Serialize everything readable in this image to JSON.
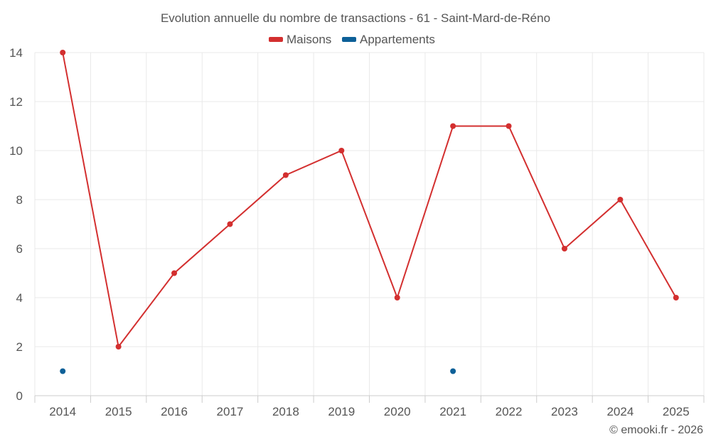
{
  "chart_data": {
    "type": "line",
    "title": "Evolution annuelle du nombre de transactions - 61 - Saint-Mard-de-Réno",
    "categories": [
      "2014",
      "2015",
      "2016",
      "2017",
      "2018",
      "2019",
      "2020",
      "2021",
      "2022",
      "2023",
      "2024",
      "2025"
    ],
    "series": [
      {
        "name": "Maisons",
        "color": "#d32f2f",
        "values": [
          14,
          2,
          5,
          7,
          9,
          10,
          4,
          11,
          11,
          6,
          8,
          4
        ]
      },
      {
        "name": "Appartements",
        "color": "#0d6098",
        "values": [
          1,
          null,
          null,
          null,
          null,
          null,
          null,
          1,
          null,
          null,
          null,
          null
        ]
      }
    ],
    "ylim": [
      0,
      14
    ],
    "yticks": [
      "0",
      "2",
      "4",
      "6",
      "8",
      "10",
      "12",
      "14"
    ],
    "xlabel": "",
    "ylabel": "",
    "grid": true,
    "legend_position": "top-center"
  },
  "credit": "© emooki.fr - 2026"
}
